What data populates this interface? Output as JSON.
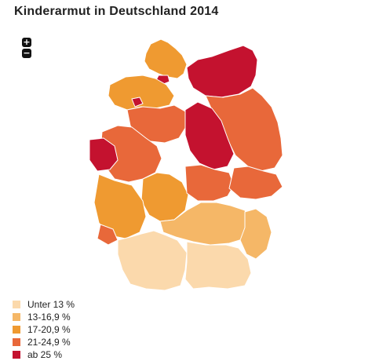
{
  "title": "Kinderarmut in Deutschland 2014",
  "zoom": {
    "in_label": "+",
    "out_label": "−"
  },
  "legend": [
    {
      "label": "Unter 13 %",
      "color": "#fbd9ac"
    },
    {
      "label": "13-16,9 %",
      "color": "#f5b767"
    },
    {
      "label": "17-20,9 %",
      "color": "#ef9a31"
    },
    {
      "label": "21-24,9 %",
      "color": "#e8683a"
    },
    {
      "label": "ab 25 %",
      "color": "#c4122f"
    }
  ],
  "regions": [
    {
      "name": "schleswig-holstein",
      "cls": 2
    },
    {
      "name": "hamburg",
      "cls": 4
    },
    {
      "name": "mecklenburg-vorpommern",
      "cls": 4
    },
    {
      "name": "niedersachsen-nord",
      "cls": 2
    },
    {
      "name": "niedersachsen-mitte",
      "cls": 3
    },
    {
      "name": "bremen",
      "cls": 4
    },
    {
      "name": "berlin-brandenburg",
      "cls": 3
    },
    {
      "name": "sachsen-anhalt",
      "cls": 4
    },
    {
      "name": "nordrhein-westfalen-ost",
      "cls": 3
    },
    {
      "name": "ruhrgebiet",
      "cls": 4
    },
    {
      "name": "hessen",
      "cls": 2
    },
    {
      "name": "thueringen",
      "cls": 3
    },
    {
      "name": "sachsen",
      "cls": 3
    },
    {
      "name": "rheinland-pfalz",
      "cls": 2
    },
    {
      "name": "saarland",
      "cls": 3
    },
    {
      "name": "franken",
      "cls": 1
    },
    {
      "name": "baden-wuerttemberg",
      "cls": 0
    },
    {
      "name": "bayern-sued",
      "cls": 0
    },
    {
      "name": "bayern-ost",
      "cls": 1
    }
  ]
}
